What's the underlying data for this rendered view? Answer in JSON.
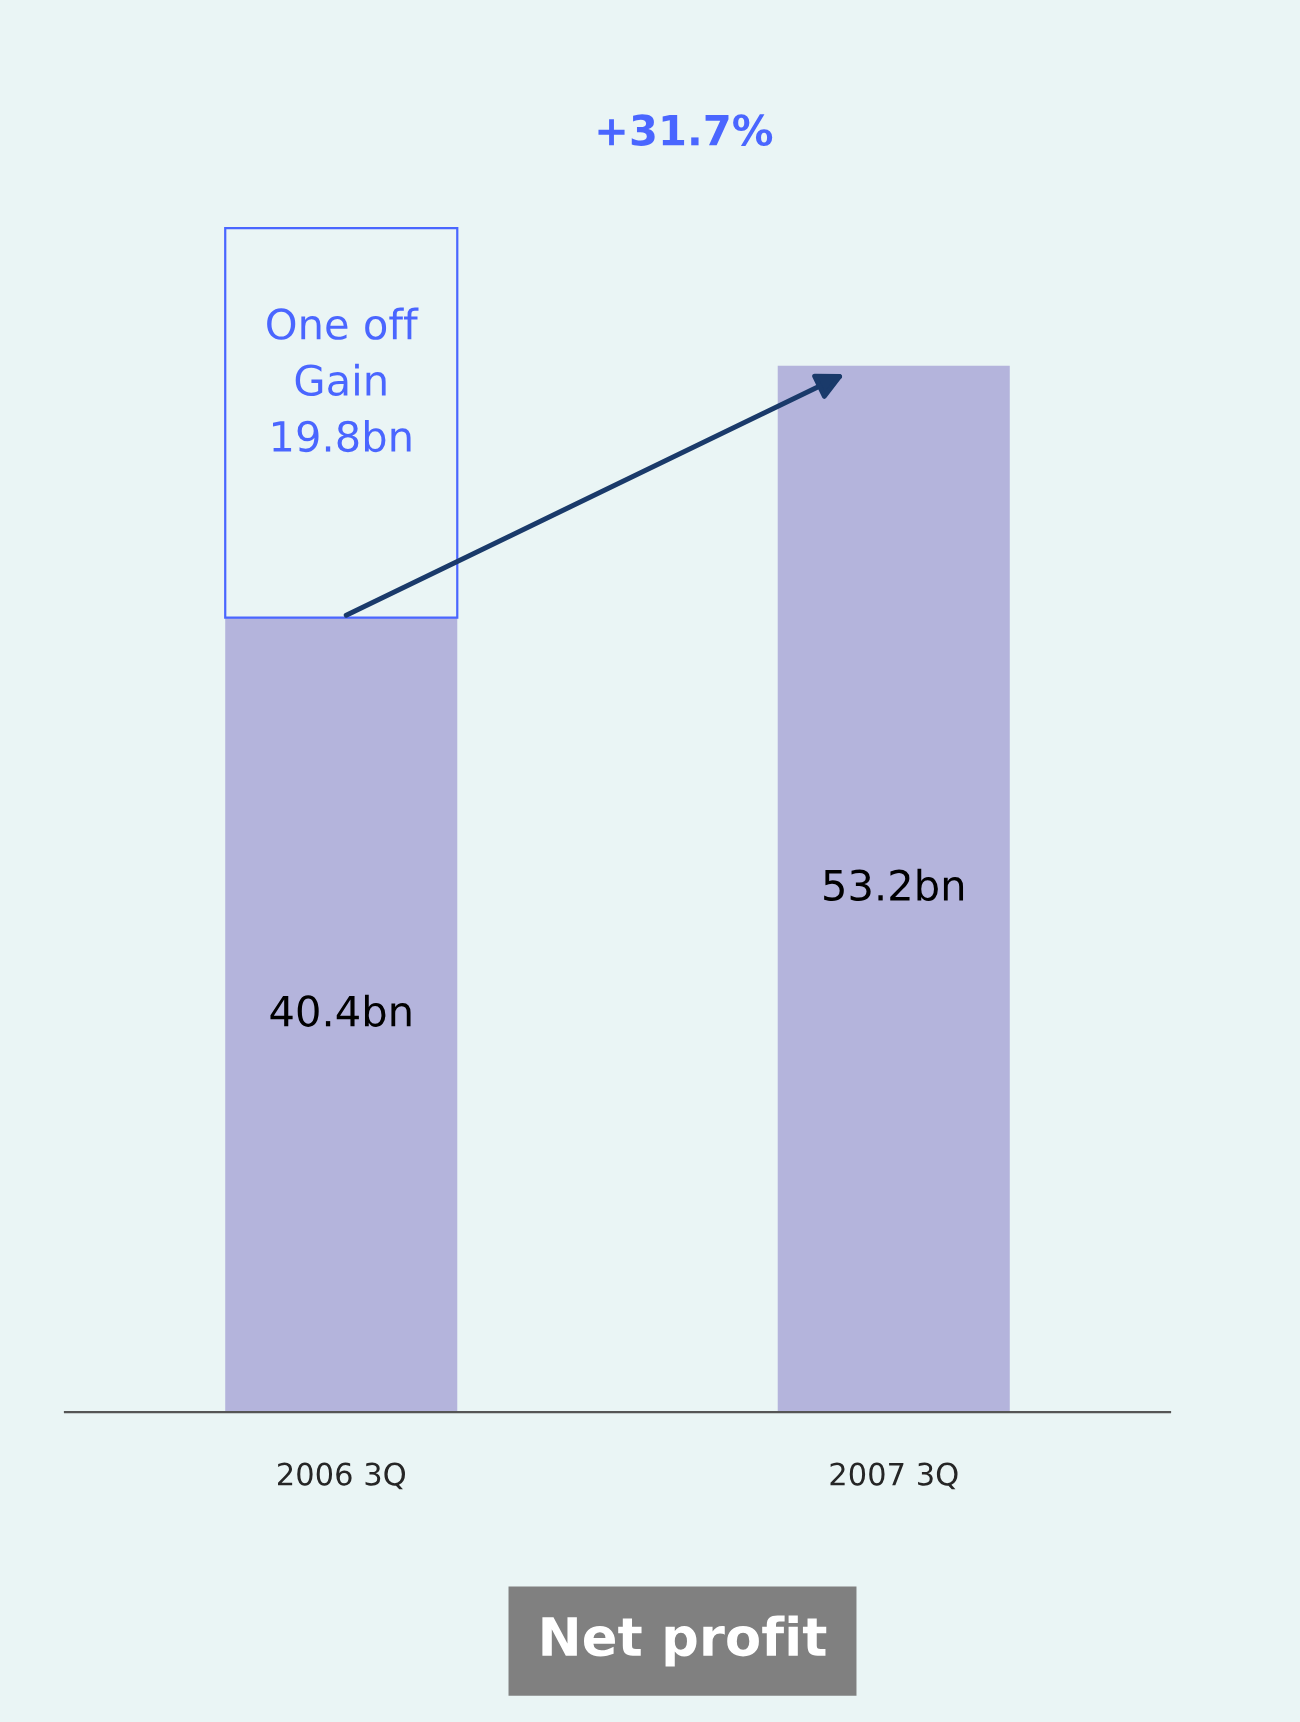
{
  "chart_data": {
    "type": "bar",
    "title": "Net profit",
    "stacked": true,
    "categories": [
      "2006 3Q",
      "2007 3Q"
    ],
    "series": [
      {
        "color": "#b4b4dc",
        "values": [
          40.4,
          53.2
        ],
        "value_labels": [
          "40.4bn",
          "53.2bn"
        ]
      },
      {
        "color": "#4a66ff",
        "values": [
          19.8,
          null
        ],
        "value_labels": [
          "One off\nGain\n19.8bn",
          null
        ]
      }
    ],
    "annotations": [
      "+31.7%"
    ],
    "grid": false
  }
}
